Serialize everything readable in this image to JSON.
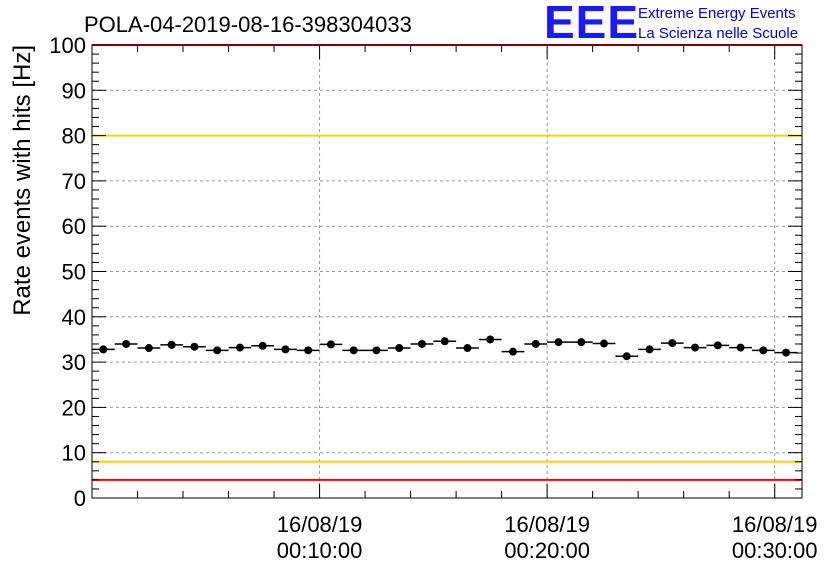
{
  "header": {
    "run_title": "POLA-04-2019-08-16-398304033",
    "logo_text": "EEE",
    "logo_line1": "Extreme Energy Events",
    "logo_line2": "La Scienza nelle Scuole"
  },
  "chart_data": {
    "type": "scatter",
    "title": "POLA-04-2019-08-16-398304033",
    "ylabel": "Rate events with hits [Hz]",
    "xlabel": "",
    "ylim": [
      0,
      100
    ],
    "y_ticks": [
      0,
      10,
      20,
      30,
      40,
      50,
      60,
      70,
      80,
      90,
      100
    ],
    "xlim_minutes": [
      0,
      31.2
    ],
    "x_ticks": [
      {
        "minute": 10,
        "label_date": "16/08/19",
        "label_time": "00:10:00"
      },
      {
        "minute": 20,
        "label_date": "16/08/19",
        "label_time": "00:20:00"
      },
      {
        "minute": 30,
        "label_date": "16/08/19",
        "label_time": "00:30:00"
      }
    ],
    "grid": true,
    "bin_width_minutes": 1,
    "series": [
      {
        "x_minutes": [
          0.5,
          1.5,
          2.5,
          3.5,
          4.5,
          5.5,
          6.5,
          7.5,
          8.5,
          9.5,
          10.5,
          11.5,
          12.5,
          13.5,
          14.5,
          15.5,
          16.5,
          17.5,
          18.5,
          19.5,
          20.5,
          21.5,
          22.5,
          23.5,
          24.5,
          25.5,
          26.5,
          27.5,
          28.5,
          29.5,
          30.5
        ],
        "values": [
          32.8,
          34.0,
          33.1,
          33.8,
          33.4,
          32.6,
          33.2,
          33.6,
          32.8,
          32.6,
          33.9,
          32.6,
          32.6,
          33.1,
          34.0,
          34.6,
          33.1,
          35.0,
          32.3,
          34.0,
          34.4,
          34.4,
          34.1,
          31.3,
          32.8,
          34.2,
          33.2,
          33.7,
          33.2,
          32.6,
          32.1
        ],
        "color": "#000000"
      }
    ],
    "reference_lines": [
      {
        "y": 80,
        "color": "#ffd000"
      },
      {
        "y": 8,
        "color": "#ffd000"
      },
      {
        "y": 4,
        "color": "#ff0000"
      },
      {
        "y": 100,
        "color": "#ff0000"
      }
    ]
  }
}
